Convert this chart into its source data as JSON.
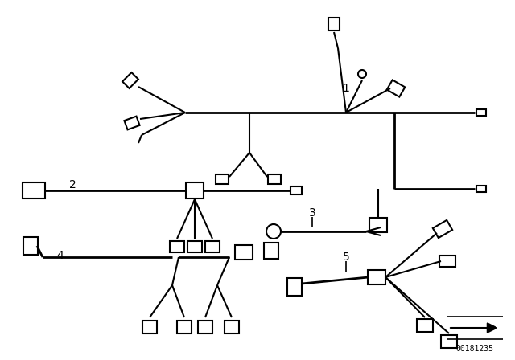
{
  "background_color": "#ffffff",
  "line_color": "#000000",
  "lw_main": 2.0,
  "lw_branch": 1.5,
  "lw_thin": 1.2,
  "title": "00181235",
  "fig_width": 6.4,
  "fig_height": 4.48,
  "dpi": 100
}
